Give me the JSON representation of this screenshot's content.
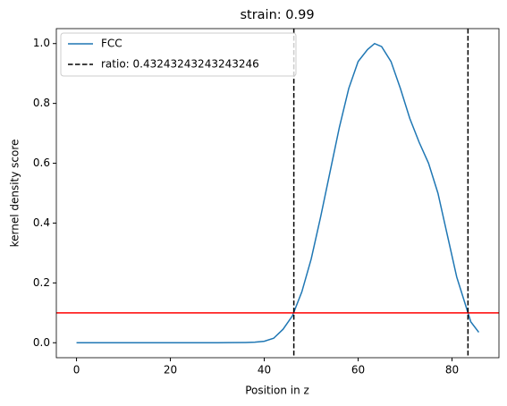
{
  "chart_data": {
    "type": "line",
    "title": "strain: 0.99",
    "xlabel": "Position in z",
    "ylabel": "kernel density score",
    "series": [
      {
        "name": "FCC",
        "color": "#1f77b4",
        "x": [
          0,
          10,
          20,
          30,
          36,
          38,
          40,
          42,
          44,
          46,
          48,
          50,
          52,
          54,
          56,
          58,
          60,
          62,
          63.5,
          65,
          67,
          69,
          71,
          73,
          75,
          77,
          79,
          81,
          83,
          84,
          85.7
        ],
        "values": [
          0,
          0,
          0,
          0,
          0.001,
          0.002,
          0.005,
          0.015,
          0.045,
          0.09,
          0.17,
          0.28,
          0.42,
          0.57,
          0.72,
          0.85,
          0.94,
          0.98,
          1.0,
          0.99,
          0.94,
          0.85,
          0.75,
          0.67,
          0.6,
          0.5,
          0.36,
          0.22,
          0.12,
          0.07,
          0.035
        ]
      }
    ],
    "vlines": {
      "name": "ratio: 0.43243243243243246",
      "color": "#000000",
      "x": [
        46.3,
        83.4
      ]
    },
    "hline": {
      "color": "#ff0000",
      "y": 0.1
    },
    "xlim": [
      -4.3,
      90
    ],
    "ylim": [
      -0.05,
      1.05
    ],
    "xticks": [
      0,
      20,
      40,
      60,
      80
    ],
    "yticks": [
      {
        "value": 0,
        "label": "0.0"
      },
      {
        "value": 0.2,
        "label": "0.2"
      },
      {
        "value": 0.4,
        "label": "0.4"
      },
      {
        "value": 0.6,
        "label": "0.6"
      },
      {
        "value": 0.8,
        "label": "0.8"
      },
      {
        "value": 1.0,
        "label": "1.0"
      }
    ],
    "legend": "upper left"
  }
}
